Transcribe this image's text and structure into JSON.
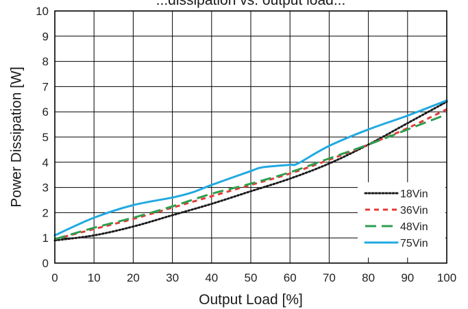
{
  "chart_data": {
    "type": "line",
    "title": "...dissipation vs. output load...",
    "xlabel": "Output Load [%]",
    "ylabel": "Power Dissipation [W]",
    "xlim": [
      0,
      100
    ],
    "ylim": [
      0,
      10
    ],
    "x_ticks": [
      "0",
      "10",
      "20",
      "30",
      "40",
      "50",
      "60",
      "70",
      "80",
      "90",
      "100"
    ],
    "y_ticks": [
      "0",
      "1",
      "2",
      "3",
      "4",
      "5",
      "6",
      "7",
      "8",
      "9",
      "10"
    ],
    "grid": true,
    "legend_position": "bottom-right",
    "series": [
      {
        "name": "18Vin",
        "color": "#1a1a1a",
        "style": "dotted",
        "points": [
          [
            0,
            0.9
          ],
          [
            10,
            1.1
          ],
          [
            20,
            1.45
          ],
          [
            30,
            1.9
          ],
          [
            40,
            2.35
          ],
          [
            50,
            2.85
          ],
          [
            60,
            3.35
          ],
          [
            70,
            3.95
          ],
          [
            80,
            4.7
          ],
          [
            90,
            5.55
          ],
          [
            100,
            6.4
          ]
        ]
      },
      {
        "name": "36Vin",
        "color": "#e53935",
        "style": "dashed-short",
        "points": [
          [
            0,
            0.95
          ],
          [
            10,
            1.35
          ],
          [
            20,
            1.75
          ],
          [
            30,
            2.2
          ],
          [
            40,
            2.65
          ],
          [
            50,
            3.1
          ],
          [
            60,
            3.55
          ],
          [
            70,
            4.1
          ],
          [
            80,
            4.7
          ],
          [
            90,
            5.35
          ],
          [
            100,
            6.1
          ]
        ]
      },
      {
        "name": "48Vin",
        "color": "#2e9e4f",
        "style": "dashed-long",
        "points": [
          [
            0,
            0.95
          ],
          [
            10,
            1.4
          ],
          [
            20,
            1.8
          ],
          [
            30,
            2.25
          ],
          [
            40,
            2.75
          ],
          [
            50,
            3.15
          ],
          [
            60,
            3.6
          ],
          [
            70,
            4.15
          ],
          [
            80,
            4.7
          ],
          [
            90,
            5.3
          ],
          [
            100,
            5.9
          ]
        ]
      },
      {
        "name": "75Vin",
        "color": "#20a9e0",
        "style": "solid",
        "points": [
          [
            0,
            1.1
          ],
          [
            10,
            1.8
          ],
          [
            20,
            2.3
          ],
          [
            30,
            2.6
          ],
          [
            35,
            2.8
          ],
          [
            40,
            3.1
          ],
          [
            50,
            3.65
          ],
          [
            53,
            3.8
          ],
          [
            60,
            3.9
          ],
          [
            62,
            3.95
          ],
          [
            70,
            4.65
          ],
          [
            80,
            5.3
          ],
          [
            90,
            5.85
          ],
          [
            100,
            6.45
          ]
        ]
      }
    ]
  }
}
